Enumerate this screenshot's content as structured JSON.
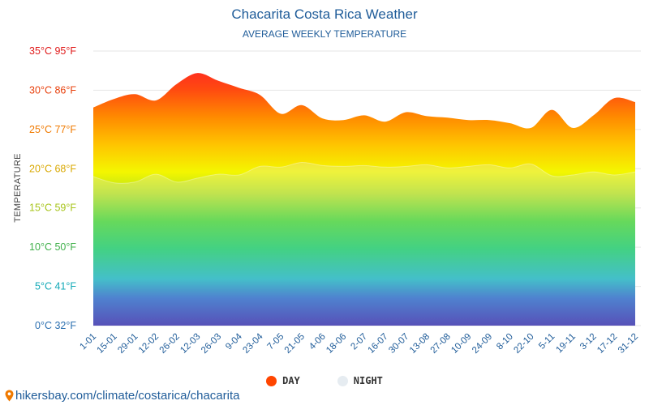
{
  "page": {
    "source_text": "hikersbay.com/climate/costarica/chacarita",
    "source_icon": "map-pin-icon"
  },
  "chart_data": {
    "type": "area",
    "title": "Chacarita Costa Rica Weather",
    "subtitle": "AVERAGE WEEKLY TEMPERATURE",
    "ylabel": "TEMPERATURE",
    "xlabel": "",
    "ylim": [
      0,
      35
    ],
    "grid": true,
    "y_ticks": [
      {
        "value": 0,
        "label": "0°C 32°F",
        "color": "#2b6fb0"
      },
      {
        "value": 5,
        "label": "5°C 41°F",
        "color": "#12a9b7"
      },
      {
        "value": 10,
        "label": "10°C 50°F",
        "color": "#3fb04a"
      },
      {
        "value": 15,
        "label": "15°C 59°F",
        "color": "#a7c41a"
      },
      {
        "value": 20,
        "label": "20°C 68°F",
        "color": "#d9a800"
      },
      {
        "value": 25,
        "label": "25°C 77°F",
        "color": "#f07a00"
      },
      {
        "value": 30,
        "label": "30°C 86°F",
        "color": "#e8400c"
      },
      {
        "value": 35,
        "label": "35°C 95°F",
        "color": "#e01b1b"
      }
    ],
    "categories": [
      "1-01",
      "15-01",
      "29-01",
      "12-02",
      "26-02",
      "12-03",
      "26-03",
      "9-04",
      "23-04",
      "7-05",
      "21-05",
      "4-06",
      "18-06",
      "2-07",
      "16-07",
      "30-07",
      "13-08",
      "27-08",
      "10-09",
      "24-09",
      "8-10",
      "22-10",
      "5-11",
      "19-11",
      "3-12",
      "17-12",
      "31-12"
    ],
    "series": [
      {
        "name": "DAY",
        "color": "#ff4500",
        "values": [
          27.8,
          28.9,
          29.5,
          28.7,
          30.8,
          32.2,
          31.2,
          30.3,
          29.4,
          27.0,
          28.1,
          26.4,
          26.2,
          26.8,
          26.0,
          27.2,
          26.7,
          26.5,
          26.2,
          26.2,
          25.8,
          25.2,
          27.5,
          25.2,
          26.8,
          29.0,
          28.5
        ]
      },
      {
        "name": "NIGHT",
        "color": "#e6ecf1",
        "values": [
          19.0,
          18.2,
          18.3,
          19.3,
          18.3,
          18.8,
          19.3,
          19.2,
          20.3,
          20.2,
          20.8,
          20.4,
          20.3,
          20.4,
          20.2,
          20.3,
          20.5,
          20.1,
          20.3,
          20.5,
          20.1,
          20.6,
          19.1,
          19.2,
          19.6,
          19.2,
          19.6
        ]
      }
    ],
    "legend": [
      {
        "label": "DAY",
        "color": "#ff4500"
      },
      {
        "label": "NIGHT",
        "color": "#e6ecf1"
      }
    ],
    "legend_position": "bottom"
  }
}
